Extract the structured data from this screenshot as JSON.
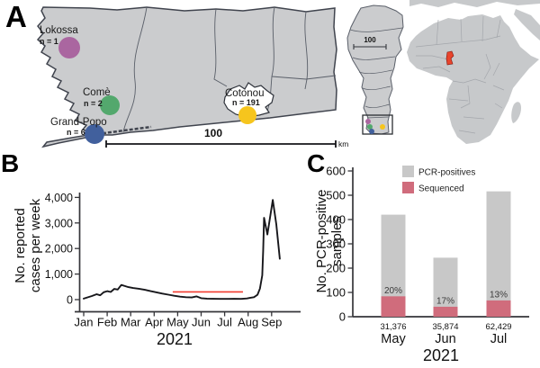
{
  "figure": {
    "background": "#ffffff",
    "panels": {
      "a_label": "A",
      "b_label": "B",
      "c_label": "C"
    }
  },
  "panel_a": {
    "description": "Map of southern Benin with sampling sites, Benin country inset and Africa inset",
    "sites": [
      {
        "key": "lokossa",
        "name": "Lokossa",
        "count_label": "n = 1",
        "color": "#aa66a0"
      },
      {
        "key": "come",
        "name": "Comè",
        "count_label": "n = 2",
        "color": "#53a86d"
      },
      {
        "key": "grand-popo",
        "name": "Grand-Popo",
        "count_label": "n = 6",
        "color": "#41609d"
      },
      {
        "key": "cotonou",
        "name": "Cotonou",
        "count_label": "n = 191",
        "color": "#f6c51d"
      }
    ],
    "main_scale_bar": {
      "label": "100",
      "unit": "km"
    },
    "inset_scale_bar": {
      "label": "100"
    },
    "colors": {
      "land": "#cbccce",
      "outer_border": "#40444e",
      "inner_border": "#5a5f69",
      "cotonou_region_fill": "#ffffff",
      "africa_land": "#c7c9cb",
      "africa_border": "#a4a7ac",
      "benin_highlight": "#e8442c",
      "benin_highlight_border": "#7e150c"
    }
  },
  "chart_data": [
    {
      "type": "line",
      "title": "",
      "ylabel": "No. reported cases per week",
      "ylabel_lines": [
        "No. reported",
        "cases per week"
      ],
      "xlabel": "2021",
      "x_ticks": [
        "Jan",
        "Feb",
        "Mar",
        "Apr",
        "May",
        "Jun",
        "Jul",
        "Aug",
        "Sep"
      ],
      "x_note": "x values of points are months after the Jan tick (0 = Jan, 8 = Sep)",
      "y_ticks": [
        0,
        1000,
        2000,
        3000,
        4000
      ],
      "y_tick_labels": [
        "0",
        "1,000",
        "2,000",
        "3,000",
        "4,000"
      ],
      "ylim": [
        0,
        4000
      ],
      "grid": false,
      "series": [
        {
          "name": "Reported cases per week",
          "color": "#17171b",
          "points": [
            [
              0.0,
              40
            ],
            [
              0.15,
              85
            ],
            [
              0.35,
              140
            ],
            [
              0.55,
              210
            ],
            [
              0.7,
              170
            ],
            [
              0.85,
              290
            ],
            [
              1.0,
              330
            ],
            [
              1.15,
              300
            ],
            [
              1.3,
              420
            ],
            [
              1.45,
              395
            ],
            [
              1.6,
              575
            ],
            [
              1.75,
              530
            ],
            [
              1.9,
              490
            ],
            [
              2.1,
              455
            ],
            [
              2.35,
              425
            ],
            [
              2.6,
              385
            ],
            [
              2.85,
              330
            ],
            [
              3.1,
              285
            ],
            [
              3.35,
              235
            ],
            [
              3.6,
              195
            ],
            [
              3.85,
              150
            ],
            [
              4.1,
              115
            ],
            [
              4.35,
              95
            ],
            [
              4.6,
              85
            ],
            [
              4.8,
              125
            ],
            [
              5.0,
              55
            ],
            [
              5.25,
              40
            ],
            [
              5.5,
              30
            ],
            [
              5.8,
              28
            ],
            [
              6.1,
              28
            ],
            [
              6.4,
              30
            ],
            [
              6.7,
              28
            ],
            [
              6.95,
              45
            ],
            [
              7.1,
              75
            ],
            [
              7.25,
              95
            ],
            [
              7.4,
              190
            ],
            [
              7.5,
              430
            ],
            [
              7.6,
              950
            ],
            [
              7.64,
              1900
            ],
            [
              7.68,
              3200
            ],
            [
              7.82,
              2550
            ],
            [
              8.05,
              3900
            ],
            [
              8.2,
              2950
            ],
            [
              8.35,
              1600
            ]
          ]
        }
      ],
      "annotation_line": {
        "x1": 3.79,
        "x2": 6.78,
        "value": 300,
        "color": "#f23b2f"
      }
    },
    {
      "type": "bar",
      "title": "",
      "ylabel": "No. PCR-positive samples",
      "ylabel_lines": [
        "No. PCR-positive",
        "samples"
      ],
      "xlabel": "2021",
      "categories": [
        "May",
        "Jun",
        "Jul"
      ],
      "category_sublabels": [
        "31,376",
        "35,874",
        "62,429"
      ],
      "y_ticks": [
        0,
        100,
        200,
        300,
        400,
        500,
        600
      ],
      "y_tick_labels": [
        "0",
        "100",
        "200",
        "300",
        "400",
        "500",
        "600"
      ],
      "ylim": [
        0,
        600
      ],
      "grid": false,
      "legend_position": "top-left-inside",
      "series": [
        {
          "name": "PCR-positives",
          "color": "#c8c8c8",
          "values": [
            420,
            243,
            516
          ]
        },
        {
          "name": "Sequenced",
          "color": "#d06c7c",
          "values": [
            84,
            41,
            67
          ]
        }
      ],
      "bar_labels": [
        "20%",
        "17%",
        "13%"
      ]
    }
  ]
}
